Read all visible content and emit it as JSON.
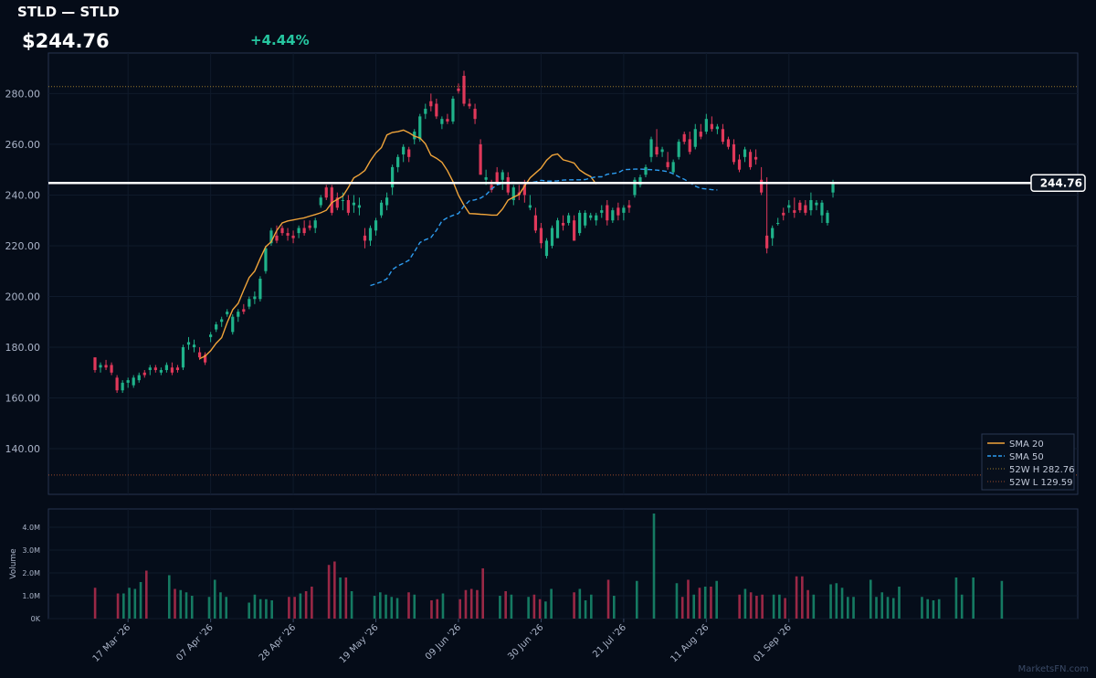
{
  "header": {
    "title": "STLD — STLD",
    "price": "$244.76",
    "change": "+4.44%"
  },
  "colors": {
    "up": "#1fb28a",
    "down": "#e0385a",
    "sma20": "#f0a43a",
    "sma50": "#2d9cf0",
    "background": "#050c18",
    "panel_border": "#26344f",
    "change_text": "#26c6a0"
  },
  "watermark": "MarketsFN.com",
  "chart_data": {
    "type": "candlestick",
    "ylim": [
      122,
      296
    ],
    "yticks": [
      140,
      160,
      180,
      200,
      220,
      240,
      260,
      280
    ],
    "ytick_labels": [
      "140.00",
      "160.00",
      "180.00",
      "200.00",
      "220.00",
      "240.00",
      "260.00",
      "280.00"
    ],
    "volume_ylabel": "Volume",
    "volume_ylim": [
      0,
      4800000
    ],
    "volume_ticks": [
      0,
      1000000,
      2000000,
      3000000,
      4000000
    ],
    "volume_tick_labels": [
      "0K",
      "1.0M",
      "2.0M",
      "3.0M",
      "4.0M"
    ],
    "xtick_labels": [
      "17 Mar '26",
      "07 Apr '26",
      "28 Apr '26",
      "19 May '26",
      "09 Jun '26",
      "30 Jun '26",
      "21 Jul '26",
      "11 Aug '26",
      "01 Sep '26"
    ],
    "xtick_index": [
      6,
      21,
      36,
      51,
      66,
      81,
      96,
      111,
      126
    ],
    "last_price": 244.76,
    "last_price_label": "244.76",
    "week52_high": 282.76,
    "week52_low": 129.59,
    "legend": [
      "SMA 20",
      "SMA 50",
      "52W H 282.76",
      "52W L 129.59"
    ],
    "ohlc": [
      [
        176,
        176,
        170,
        171
      ],
      [
        172,
        174,
        170,
        173
      ],
      [
        173,
        175,
        171,
        172
      ],
      [
        173,
        174,
        169,
        170
      ],
      [
        168,
        169,
        162,
        163
      ],
      [
        163,
        167,
        162,
        166
      ],
      [
        166,
        168,
        164,
        167
      ],
      [
        165,
        169,
        164,
        168
      ],
      [
        167,
        170,
        166,
        169
      ],
      [
        170,
        171,
        168,
        169
      ],
      [
        171,
        173,
        169,
        172
      ],
      [
        172,
        173,
        170,
        171
      ],
      [
        170,
        172,
        169,
        171
      ],
      [
        171,
        174,
        170,
        173
      ],
      [
        172,
        174,
        169,
        170
      ],
      [
        172,
        173,
        170,
        171
      ],
      [
        172,
        181,
        171,
        180
      ],
      [
        181,
        184,
        179,
        182
      ],
      [
        180,
        183,
        178,
        181
      ],
      [
        178,
        180,
        175,
        176
      ],
      [
        177,
        178,
        173,
        174
      ],
      [
        184,
        186,
        182,
        185
      ],
      [
        187,
        190,
        186,
        189
      ],
      [
        190,
        192,
        188,
        191
      ],
      [
        193,
        195,
        192,
        194
      ],
      [
        186,
        193,
        185,
        192
      ],
      [
        192,
        195,
        190,
        194
      ],
      [
        195,
        197,
        193,
        194
      ],
      [
        196,
        200,
        195,
        199
      ],
      [
        199,
        202,
        197,
        200
      ],
      [
        199,
        208,
        198,
        207
      ],
      [
        210,
        220,
        209,
        219
      ],
      [
        221,
        227,
        220,
        226
      ],
      [
        224,
        228,
        221,
        222
      ],
      [
        227,
        228,
        224,
        225
      ],
      [
        225,
        227,
        222,
        224
      ],
      [
        224,
        226,
        221,
        223
      ],
      [
        225,
        228,
        223,
        227
      ],
      [
        227,
        230,
        224,
        225
      ],
      [
        228,
        230,
        226,
        227
      ],
      [
        227,
        231,
        225,
        230
      ],
      [
        236,
        240,
        235,
        239
      ],
      [
        243,
        244,
        238,
        239
      ],
      [
        243,
        244,
        232,
        233
      ],
      [
        239,
        241,
        234,
        235
      ],
      [
        238,
        241,
        234,
        238
      ],
      [
        238,
        240,
        232,
        233
      ],
      [
        236,
        240,
        233,
        237
      ],
      [
        235,
        239,
        232,
        236
      ],
      [
        224,
        227,
        219,
        222
      ],
      [
        222,
        228,
        220,
        227
      ],
      [
        226,
        231,
        224,
        230
      ],
      [
        232,
        238,
        231,
        237
      ],
      [
        236,
        241,
        234,
        239
      ],
      [
        243,
        252,
        240,
        251
      ],
      [
        251,
        256,
        249,
        255
      ],
      [
        256,
        260,
        253,
        259
      ],
      [
        258,
        259,
        253,
        255
      ],
      [
        262,
        266,
        260,
        265
      ],
      [
        262,
        272,
        261,
        271
      ],
      [
        272,
        276,
        270,
        274
      ],
      [
        277,
        280,
        273,
        275
      ],
      [
        276,
        278,
        270,
        271
      ],
      [
        268,
        271,
        266,
        270
      ],
      [
        270,
        272,
        268,
        269
      ],
      [
        269,
        279,
        268,
        278
      ],
      [
        282,
        284,
        280,
        281
      ],
      [
        287,
        289,
        275,
        276
      ],
      [
        276,
        278,
        274,
        275
      ],
      [
        274,
        276,
        268,
        270
      ],
      [
        260,
        262,
        248,
        248
      ],
      [
        246,
        250,
        244,
        247
      ],
      [
        244,
        246,
        241,
        242
      ],
      [
        249,
        251,
        244,
        245
      ],
      [
        246,
        250,
        242,
        249
      ],
      [
        247,
        249,
        240,
        241
      ],
      [
        238,
        244,
        236,
        243
      ],
      [
        241,
        244,
        238,
        240
      ],
      [
        244,
        246,
        237,
        240
      ],
      [
        235,
        240,
        234,
        236
      ],
      [
        232,
        235,
        225,
        226
      ],
      [
        227,
        229,
        219,
        221
      ],
      [
        216,
        223,
        215,
        222
      ],
      [
        220,
        228,
        219,
        227
      ],
      [
        223,
        231,
        223,
        230
      ],
      [
        229,
        232,
        226,
        228
      ],
      [
        229,
        233,
        228,
        232
      ],
      [
        230,
        232,
        222,
        222
      ],
      [
        225,
        234,
        224,
        233
      ],
      [
        228,
        234,
        227,
        233
      ],
      [
        231,
        233,
        230,
        232
      ],
      [
        230,
        233,
        228,
        232
      ],
      [
        233,
        236,
        231,
        234
      ],
      [
        236,
        238,
        228,
        230
      ],
      [
        230,
        235,
        229,
        234
      ],
      [
        235,
        237,
        230,
        232
      ],
      [
        233,
        236,
        230,
        235
      ],
      [
        236,
        238,
        233,
        235
      ],
      [
        240,
        247,
        239,
        246
      ],
      [
        244,
        248,
        243,
        247
      ],
      [
        248,
        252,
        247,
        251
      ],
      [
        255,
        263,
        253,
        262
      ],
      [
        259,
        266,
        255,
        256
      ],
      [
        257,
        259,
        255,
        258
      ],
      [
        253,
        257,
        250,
        251
      ],
      [
        249,
        254,
        248,
        253
      ],
      [
        255,
        262,
        254,
        261
      ],
      [
        264,
        265,
        260,
        261
      ],
      [
        262,
        265,
        256,
        257
      ],
      [
        259,
        268,
        258,
        266
      ],
      [
        265,
        268,
        262,
        263
      ],
      [
        265,
        272,
        264,
        270
      ],
      [
        268,
        271,
        265,
        266
      ],
      [
        266,
        268,
        264,
        267
      ],
      [
        266,
        268,
        260,
        261
      ],
      [
        262,
        263,
        258,
        259
      ],
      [
        260,
        262,
        252,
        253
      ],
      [
        254,
        256,
        249,
        250
      ],
      [
        255,
        259,
        253,
        258
      ],
      [
        257,
        258,
        250,
        251
      ],
      [
        255,
        258,
        252,
        254
      ],
      [
        246,
        251,
        240,
        241
      ],
      [
        224,
        247,
        217,
        219
      ],
      [
        223,
        228,
        220,
        227
      ],
      [
        229,
        231,
        228,
        229
      ],
      [
        233,
        235,
        230,
        232
      ],
      [
        235,
        238,
        233,
        236
      ],
      [
        234,
        239,
        231,
        233
      ],
      [
        237,
        238,
        233,
        234
      ],
      [
        236,
        238,
        232,
        233
      ],
      [
        234,
        241,
        232,
        238
      ],
      [
        236,
        238,
        234,
        237
      ],
      [
        232,
        238,
        229,
        237
      ],
      [
        229,
        234,
        228,
        233
      ],
      [
        241,
        246,
        239,
        244.76
      ]
    ],
    "volume": [
      1350000,
      0,
      0,
      0,
      1100000,
      1100000,
      1350000,
      1300000,
      1600000,
      2100000,
      0,
      0,
      0,
      1900000,
      1300000,
      1250000,
      1150000,
      1000000,
      0,
      0,
      950000,
      1700000,
      1150000,
      950000,
      0,
      0,
      0,
      700000,
      1050000,
      850000,
      850000,
      800000,
      0,
      0,
      950000,
      950000,
      1100000,
      1200000,
      1400000,
      0,
      0,
      2350000,
      2500000,
      1800000,
      1800000,
      1200000,
      0,
      0,
      0,
      1000000,
      1150000,
      1050000,
      950000,
      900000,
      0,
      1150000,
      1050000,
      0,
      0,
      800000,
      850000,
      1100000,
      0,
      0,
      850000,
      1250000,
      1300000,
      1250000,
      2200000,
      0,
      0,
      1000000,
      1200000,
      1050000,
      0,
      0,
      950000,
      1050000,
      850000,
      750000,
      1300000,
      0,
      0,
      0,
      1150000,
      1300000,
      800000,
      1050000,
      0,
      0,
      1700000,
      1000000,
      0,
      0,
      0,
      1650000,
      0,
      0,
      4600000,
      0,
      0,
      0,
      1550000,
      950000,
      1700000,
      1050000,
      1350000,
      1400000,
      1400000,
      1650000,
      0,
      0,
      0,
      1050000,
      1300000,
      1150000,
      1000000,
      1050000,
      0,
      1050000,
      1050000,
      900000,
      0,
      1850000,
      1850000,
      1250000,
      1050000,
      0,
      0,
      1500000,
      1550000,
      1350000,
      950000,
      950000,
      0,
      0,
      1700000,
      950000,
      1150000,
      950000,
      900000,
      1400000,
      0,
      0,
      0,
      950000,
      850000,
      800000,
      850000,
      0,
      0,
      1800000,
      1050000,
      0,
      1800000,
      0,
      0,
      0,
      0,
      1650000,
      0,
      0,
      0,
      0,
      0
    ],
    "sma20_start": 19,
    "sma20": [
      175.5,
      176.5,
      178.6,
      181.6,
      183.8,
      189.7,
      194.8,
      197.3,
      202.5,
      207.5,
      210,
      215,
      219.6,
      221.6,
      226,
      229,
      229.8,
      230.2,
      230.6,
      231,
      231.7,
      232.3,
      233,
      234,
      237,
      238.3,
      239.6,
      243,
      246.8,
      248,
      249.7,
      253.5,
      256.6,
      258.7,
      263.7,
      264.7,
      265,
      265.6,
      264.6,
      263.2,
      262.5,
      260.2,
      255.7,
      254.5,
      252.9,
      249.6,
      245.4,
      239.9,
      236,
      232.7,
      232.6,
      232.4,
      232.3,
      232.1,
      232.1,
      234.5,
      238,
      239.2,
      240.2,
      243.5,
      246.8,
      248.7,
      250.6,
      253.7,
      255.7,
      256.2,
      253.9,
      253.3,
      252.6,
      249.9,
      248.4,
      247.3,
      244.3
    ],
    "sma50_start": 50,
    "sma50": [
      204.3,
      205,
      205.8,
      207,
      210.6,
      212.1,
      213.1,
      214.3,
      217.6,
      221.3,
      222.4,
      223.2,
      226.1,
      229.8,
      231.1,
      232,
      232.7,
      235.7,
      237.7,
      238.1,
      238.8,
      240.1,
      242.4,
      244,
      244.6,
      245,
      245,
      244.9,
      244.8,
      244.9,
      245.2,
      245.8,
      245.5,
      245.5,
      245.6,
      245.9,
      246,
      246,
      246,
      246.1,
      246.7,
      247.2,
      247.2,
      248.2,
      248.5,
      248.8,
      250,
      250.1,
      250.2,
      250.2,
      250.1,
      250,
      249.8,
      249.6,
      249.2,
      248.4,
      247.2,
      246.2,
      244.9,
      243.5,
      242.6,
      242.4,
      242.1,
      242
    ]
  }
}
